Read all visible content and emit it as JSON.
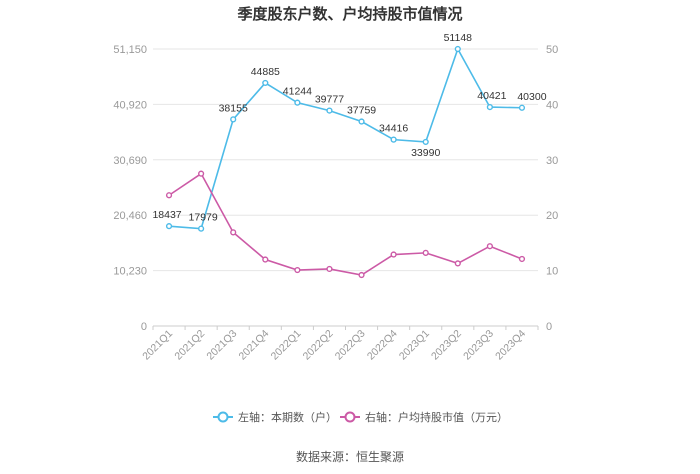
{
  "chart_data": {
    "type": "line",
    "title": "季度股东户数、户均持股市值情况",
    "categories": [
      "2021Q1",
      "2021Q2",
      "2021Q3",
      "2021Q4",
      "2022Q1",
      "2022Q2",
      "2022Q3",
      "2022Q4",
      "2023Q1",
      "2023Q2",
      "2023Q3",
      "2023Q4"
    ],
    "left_axis": {
      "ticks": [
        "0",
        "10,230",
        "20,460",
        "30,690",
        "40,920",
        "51,150"
      ],
      "min": 0,
      "max": 51150
    },
    "right_axis": {
      "ticks": [
        "0",
        "10",
        "20",
        "30",
        "40",
        "50"
      ],
      "min": 0,
      "max": 50
    },
    "series": [
      {
        "name": "左轴：本期数（户）",
        "axis": "left",
        "color": "#4dbbe8",
        "values": [
          18437,
          17979,
          38155,
          44885,
          41244,
          39777,
          37759,
          34416,
          33990,
          51148,
          40421,
          40300
        ],
        "labels": [
          "18437",
          "17979",
          "38155",
          "44885",
          "41244",
          "39777",
          "37759",
          "34416",
          "33990",
          "51148",
          "40421",
          "40300"
        ]
      },
      {
        "name": "右轴：户均持股市值（万元）",
        "axis": "right",
        "color": "#cc5aa6",
        "values": [
          23.6,
          27.5,
          16.9,
          12.0,
          10.1,
          10.3,
          9.2,
          12.9,
          13.2,
          11.3,
          14.4,
          12.1
        ]
      }
    ],
    "grid": true,
    "legend_position": "bottom"
  },
  "source": "数据来源：恒生聚源"
}
